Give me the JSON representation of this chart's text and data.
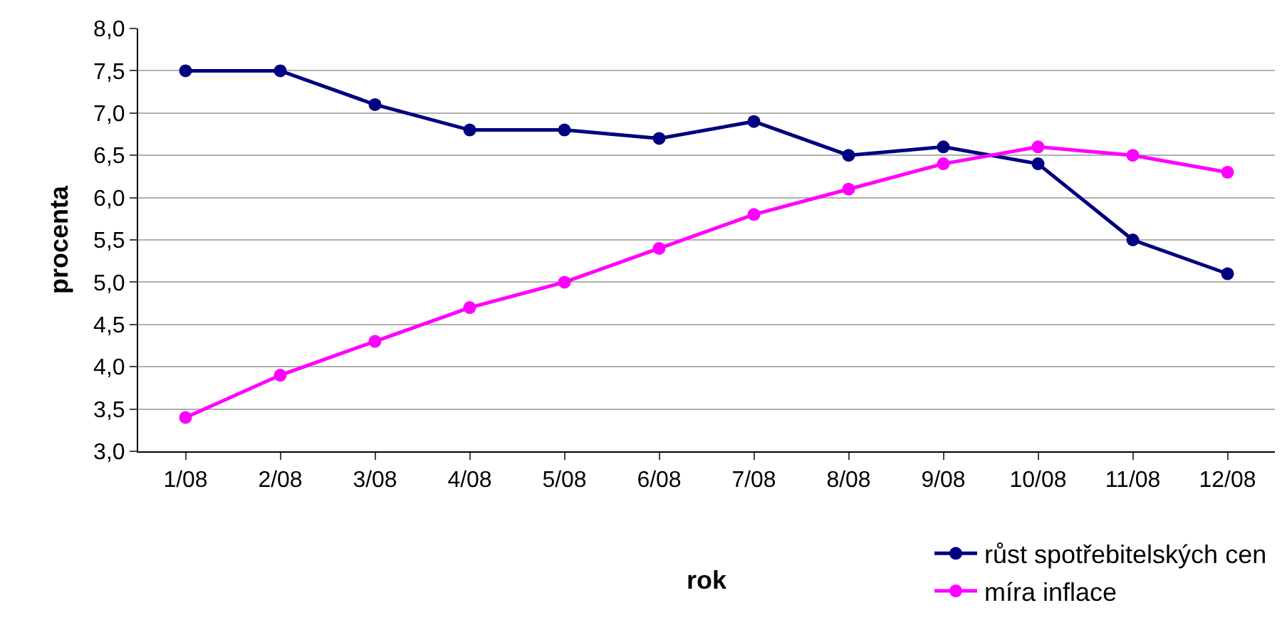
{
  "chart_data": {
    "type": "line",
    "xlabel": "rok",
    "ylabel": "procenta",
    "categories": [
      "1/08",
      "2/08",
      "3/08",
      "4/08",
      "5/08",
      "6/08",
      "7/08",
      "8/08",
      "9/08",
      "10/08",
      "11/08",
      "12/08"
    ],
    "series": [
      {
        "name": "růst spotřebitelských cen",
        "color": "#000080",
        "values": [
          7.5,
          7.5,
          7.1,
          6.8,
          6.8,
          6.7,
          6.9,
          6.5,
          6.6,
          6.4,
          5.5,
          5.1
        ]
      },
      {
        "name": "míra inflace",
        "color": "#ff00ff",
        "values": [
          3.4,
          3.9,
          4.3,
          4.7,
          5.0,
          5.4,
          5.8,
          6.1,
          6.4,
          6.6,
          6.5,
          6.3
        ]
      }
    ],
    "ylim": [
      3,
      8
    ],
    "yticks": [
      {
        "value": 3,
        "label": "3,0"
      },
      {
        "value": 3.5,
        "label": "3,5"
      },
      {
        "value": 4,
        "label": "4,0"
      },
      {
        "value": 4.5,
        "label": "4,5"
      },
      {
        "value": 5,
        "label": "5,0"
      },
      {
        "value": 5.5,
        "label": "5,5"
      },
      {
        "value": 6,
        "label": "6,0"
      },
      {
        "value": 6.5,
        "label": "6,5"
      },
      {
        "value": 7,
        "label": "7,0"
      },
      {
        "value": 7.5,
        "label": "7,5"
      },
      {
        "value": 8,
        "label": "8,0"
      }
    ],
    "grid": "y",
    "legend": "bottom right",
    "marker": "circle",
    "line_style": "solid"
  }
}
